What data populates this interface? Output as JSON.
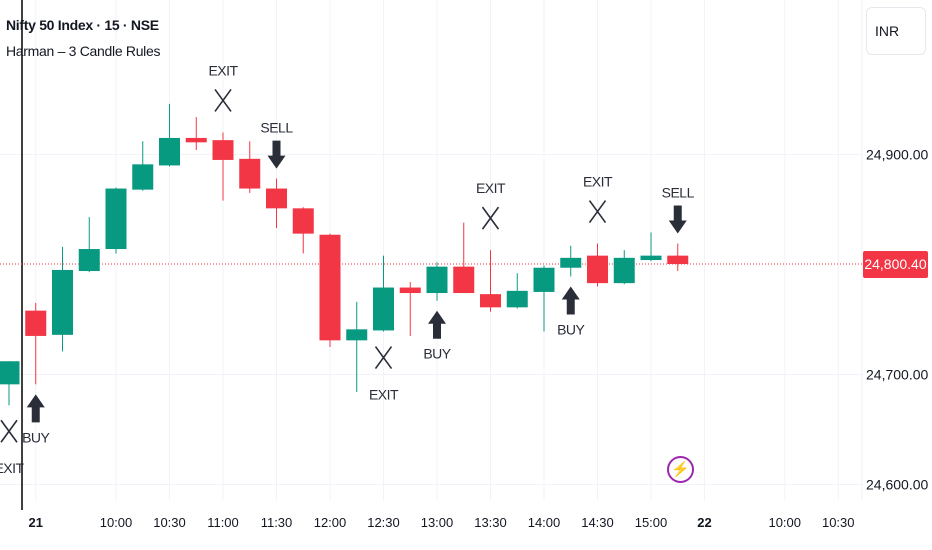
{
  "header": {
    "symbol_title": "Nifty 50 Index · 15 · NSE",
    "indicator_name": "Harman – 3 Candle Rules",
    "currency_button": "INR"
  },
  "colors": {
    "up": "#089981",
    "down": "#f23645",
    "marker": "#2a2e39",
    "alert": "#9c27b0",
    "vertical_line": "#000000"
  },
  "icons": {
    "alert": "lightning-icon"
  },
  "chart_data": {
    "type": "candlestick",
    "title": "",
    "grid": true,
    "ylim": [
      24590,
      25010
    ],
    "y_ticks": [
      "24,900.00",
      "24,800.40",
      "24,700.00",
      "24,600.00"
    ],
    "y_tick_values": [
      24900,
      24700,
      24600
    ],
    "last_price": 24800.4,
    "last_price_label": "24,800.40",
    "x_ticks": [
      {
        "label": "21",
        "time": "09:15",
        "bold": true
      },
      {
        "label": "10:00",
        "time": "10:00"
      },
      {
        "label": "10:30",
        "time": "10:30"
      },
      {
        "label": "11:00",
        "time": "11:00"
      },
      {
        "label": "11:30",
        "time": "11:30"
      },
      {
        "label": "12:00",
        "time": "12:00"
      },
      {
        "label": "12:30",
        "time": "12:30"
      },
      {
        "label": "13:00",
        "time": "13:00"
      },
      {
        "label": "13:30",
        "time": "13:30"
      },
      {
        "label": "14:00",
        "time": "14:00"
      },
      {
        "label": "14:30",
        "time": "14:30"
      },
      {
        "label": "15:00",
        "time": "15:00"
      },
      {
        "label": "22",
        "time": "d2 09:15",
        "bold": true
      },
      {
        "label": "10:00",
        "time": "d2 10:00"
      },
      {
        "label": "10:30",
        "time": "d2 10:30"
      }
    ],
    "candles": [
      {
        "time": "d0 15:15",
        "o": 24691,
        "h": 24712,
        "l": 24672,
        "c": 24712
      },
      {
        "time": "09:15",
        "o": 24758,
        "h": 24765,
        "l": 24691,
        "c": 24735
      },
      {
        "time": "09:30",
        "o": 24736,
        "h": 24816,
        "l": 24721,
        "c": 24795
      },
      {
        "time": "09:45",
        "o": 24794,
        "h": 24843,
        "l": 24793,
        "c": 24814
      },
      {
        "time": "10:00",
        "o": 24814,
        "h": 24870,
        "l": 24810,
        "c": 24869
      },
      {
        "time": "10:15",
        "o": 24868,
        "h": 24912,
        "l": 24867,
        "c": 24891
      },
      {
        "time": "10:30",
        "o": 24890,
        "h": 24946,
        "l": 24889,
        "c": 24915
      },
      {
        "time": "10:45",
        "o": 24915,
        "h": 24934,
        "l": 24904,
        "c": 24911
      },
      {
        "time": "11:00",
        "o": 24913,
        "h": 24920,
        "l": 24858,
        "c": 24895
      },
      {
        "time": "11:15",
        "o": 24896,
        "h": 24912,
        "l": 24865,
        "c": 24869
      },
      {
        "time": "11:30",
        "o": 24869,
        "h": 24878,
        "l": 24833,
        "c": 24851
      },
      {
        "time": "11:45",
        "o": 24851,
        "h": 24852,
        "l": 24810,
        "c": 24828
      },
      {
        "time": "12:00",
        "o": 24827,
        "h": 24828,
        "l": 24725,
        "c": 24731
      },
      {
        "time": "12:15",
        "o": 24731,
        "h": 24766,
        "l": 24684,
        "c": 24741
      },
      {
        "time": "12:30",
        "o": 24740,
        "h": 24808,
        "l": 24739,
        "c": 24779
      },
      {
        "time": "12:45",
        "o": 24779,
        "h": 24784,
        "l": 24735,
        "c": 24774
      },
      {
        "time": "13:00",
        "o": 24774,
        "h": 24802,
        "l": 24767,
        "c": 24798
      },
      {
        "time": "13:15",
        "o": 24798,
        "h": 24838,
        "l": 24774,
        "c": 24774
      },
      {
        "time": "13:30",
        "o": 24773,
        "h": 24813,
        "l": 24757,
        "c": 24761
      },
      {
        "time": "13:45",
        "o": 24761,
        "h": 24792,
        "l": 24760,
        "c": 24776
      },
      {
        "time": "14:00",
        "o": 24775,
        "h": 24799,
        "l": 24739,
        "c": 24797
      },
      {
        "time": "14:15",
        "o": 24797,
        "h": 24817,
        "l": 24789,
        "c": 24806
      },
      {
        "time": "14:30",
        "o": 24808,
        "h": 24819,
        "l": 24780,
        "c": 24783
      },
      {
        "time": "14:45",
        "o": 24783,
        "h": 24813,
        "l": 24782,
        "c": 24806
      },
      {
        "time": "15:00",
        "o": 24804,
        "h": 24829,
        "l": 24803,
        "c": 24808
      },
      {
        "time": "15:15",
        "o": 24808,
        "h": 24819,
        "l": 24794,
        "c": 24800.4
      }
    ],
    "signals": [
      {
        "time": "d0 15:15",
        "label": "EXIT",
        "shape": "x",
        "position": "below"
      },
      {
        "time": "09:15",
        "label": "BUY",
        "shape": "arrow-up",
        "position": "below"
      },
      {
        "time": "11:00",
        "label": "EXIT",
        "shape": "x",
        "position": "above"
      },
      {
        "time": "11:30",
        "label": "SELL",
        "shape": "arrow-down",
        "position": "above"
      },
      {
        "time": "12:30",
        "label": "EXIT",
        "shape": "x",
        "position": "below"
      },
      {
        "time": "13:00",
        "label": "BUY",
        "shape": "arrow-up",
        "position": "below"
      },
      {
        "time": "13:30",
        "label": "EXIT",
        "shape": "x",
        "position": "above"
      },
      {
        "time": "14:15",
        "label": "BUY",
        "shape": "arrow-up",
        "position": "below"
      },
      {
        "time": "14:30",
        "label": "EXIT",
        "shape": "x",
        "position": "above"
      },
      {
        "time": "15:15",
        "label": "SELL",
        "shape": "arrow-down",
        "position": "above"
      }
    ]
  }
}
